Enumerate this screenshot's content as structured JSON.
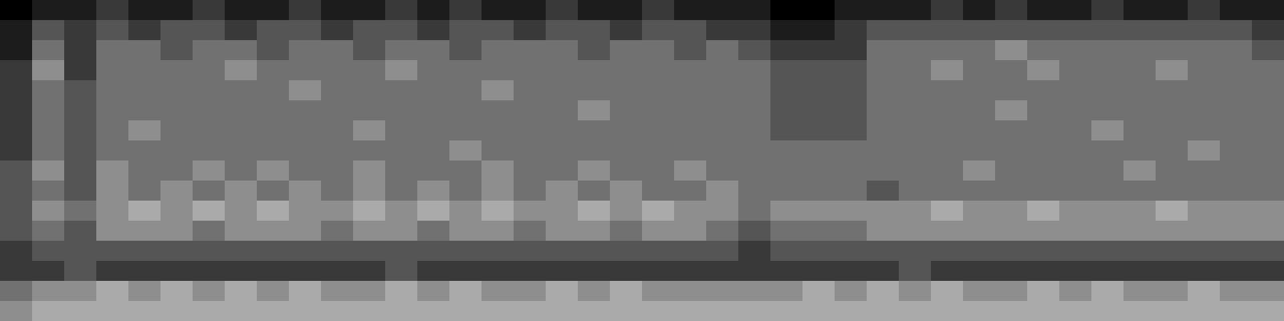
{
  "chart_data": {
    "type": "heatmap",
    "tick_labels": false,
    "zlim": [
      0,
      9
    ],
    "cells": [
      [
        0,
        1,
        1,
        2,
        1,
        1,
        2,
        1,
        1,
        2,
        1,
        1,
        2,
        1,
        2,
        1,
        1,
        2,
        1,
        1,
        2,
        1,
        1,
        1,
        0,
        0,
        1,
        1,
        1,
        2,
        1,
        2,
        1,
        1,
        2,
        1,
        1,
        2,
        1,
        1
      ],
      [
        1,
        3,
        2,
        3,
        2,
        3,
        3,
        2,
        3,
        3,
        2,
        3,
        3,
        2,
        3,
        3,
        2,
        3,
        3,
        2,
        3,
        3,
        2,
        2,
        1,
        1,
        2,
        3,
        3,
        3,
        3,
        3,
        3,
        3,
        3,
        3,
        3,
        3,
        3,
        2
      ],
      [
        1,
        4,
        2,
        4,
        4,
        3,
        4,
        4,
        3,
        4,
        4,
        3,
        4,
        4,
        3,
        4,
        4,
        4,
        3,
        4,
        4,
        3,
        4,
        3,
        2,
        2,
        2,
        4,
        4,
        4,
        4,
        5,
        4,
        4,
        4,
        4,
        4,
        4,
        4,
        3
      ],
      [
        2,
        5,
        2,
        4,
        4,
        4,
        4,
        5,
        4,
        4,
        4,
        4,
        5,
        4,
        4,
        4,
        4,
        4,
        4,
        4,
        4,
        4,
        4,
        4,
        3,
        3,
        3,
        4,
        4,
        5,
        4,
        4,
        5,
        4,
        4,
        4,
        5,
        4,
        4,
        4
      ],
      [
        2,
        4,
        3,
        4,
        4,
        4,
        4,
        4,
        4,
        5,
        4,
        4,
        4,
        4,
        4,
        5,
        4,
        4,
        4,
        4,
        4,
        4,
        4,
        4,
        3,
        3,
        3,
        4,
        4,
        4,
        4,
        4,
        4,
        4,
        4,
        4,
        4,
        4,
        4,
        4
      ],
      [
        2,
        4,
        3,
        4,
        4,
        4,
        4,
        4,
        4,
        4,
        4,
        4,
        4,
        4,
        4,
        4,
        4,
        4,
        5,
        4,
        4,
        4,
        4,
        4,
        3,
        3,
        3,
        4,
        4,
        4,
        4,
        5,
        4,
        4,
        4,
        4,
        4,
        4,
        4,
        4
      ],
      [
        2,
        4,
        3,
        4,
        5,
        4,
        4,
        4,
        4,
        4,
        4,
        5,
        4,
        4,
        4,
        4,
        4,
        4,
        4,
        4,
        4,
        4,
        4,
        4,
        3,
        3,
        3,
        4,
        4,
        4,
        4,
        4,
        4,
        4,
        5,
        4,
        4,
        4,
        4,
        4
      ],
      [
        2,
        4,
        3,
        4,
        4,
        4,
        4,
        4,
        4,
        4,
        4,
        4,
        4,
        4,
        5,
        4,
        4,
        4,
        4,
        4,
        4,
        4,
        4,
        4,
        4,
        4,
        4,
        4,
        4,
        4,
        4,
        4,
        4,
        4,
        4,
        4,
        4,
        5,
        4,
        4
      ],
      [
        3,
        5,
        3,
        5,
        4,
        4,
        5,
        4,
        5,
        4,
        4,
        5,
        4,
        4,
        4,
        5,
        4,
        4,
        5,
        4,
        4,
        5,
        4,
        4,
        4,
        4,
        4,
        4,
        4,
        4,
        5,
        4,
        4,
        4,
        4,
        5,
        4,
        4,
        4,
        4
      ],
      [
        3,
        4,
        3,
        5,
        4,
        5,
        4,
        5,
        4,
        5,
        4,
        5,
        4,
        5,
        4,
        5,
        4,
        5,
        4,
        5,
        4,
        4,
        5,
        4,
        4,
        4,
        4,
        3,
        4,
        4,
        4,
        4,
        4,
        4,
        4,
        4,
        4,
        4,
        4,
        4
      ],
      [
        3,
        5,
        4,
        5,
        6,
        5,
        6,
        5,
        6,
        5,
        5,
        6,
        5,
        6,
        5,
        6,
        5,
        5,
        6,
        5,
        6,
        5,
        5,
        4,
        5,
        5,
        5,
        5,
        5,
        6,
        5,
        5,
        6,
        5,
        5,
        5,
        6,
        5,
        5,
        5
      ],
      [
        3,
        4,
        3,
        5,
        5,
        5,
        4,
        5,
        5,
        5,
        4,
        5,
        5,
        4,
        5,
        5,
        4,
        5,
        5,
        4,
        5,
        5,
        4,
        3,
        4,
        4,
        4,
        5,
        5,
        5,
        5,
        5,
        5,
        5,
        5,
        5,
        5,
        5,
        5,
        5
      ],
      [
        2,
        3,
        3,
        3,
        3,
        3,
        3,
        3,
        3,
        3,
        3,
        3,
        3,
        3,
        3,
        3,
        3,
        3,
        3,
        3,
        3,
        3,
        3,
        2,
        3,
        3,
        3,
        3,
        3,
        3,
        3,
        3,
        3,
        3,
        3,
        3,
        3,
        3,
        3,
        3
      ],
      [
        2,
        2,
        3,
        2,
        2,
        2,
        2,
        2,
        2,
        2,
        2,
        2,
        3,
        2,
        2,
        2,
        2,
        2,
        2,
        2,
        2,
        2,
        2,
        2,
        2,
        2,
        2,
        2,
        3,
        2,
        2,
        2,
        2,
        2,
        2,
        2,
        2,
        2,
        2,
        2
      ],
      [
        4,
        5,
        5,
        6,
        5,
        6,
        5,
        6,
        5,
        6,
        5,
        5,
        6,
        5,
        6,
        5,
        5,
        6,
        5,
        6,
        5,
        5,
        5,
        5,
        5,
        6,
        5,
        6,
        5,
        6,
        5,
        5,
        6,
        5,
        6,
        5,
        5,
        6,
        5,
        5
      ],
      [
        5,
        6,
        6,
        6,
        6,
        6,
        6,
        6,
        6,
        6,
        6,
        6,
        6,
        6,
        6,
        6,
        6,
        6,
        6,
        6,
        6,
        6,
        6,
        6,
        6,
        6,
        6,
        6,
        6,
        6,
        6,
        6,
        6,
        6,
        6,
        6,
        6,
        6,
        6,
        6
      ]
    ]
  }
}
